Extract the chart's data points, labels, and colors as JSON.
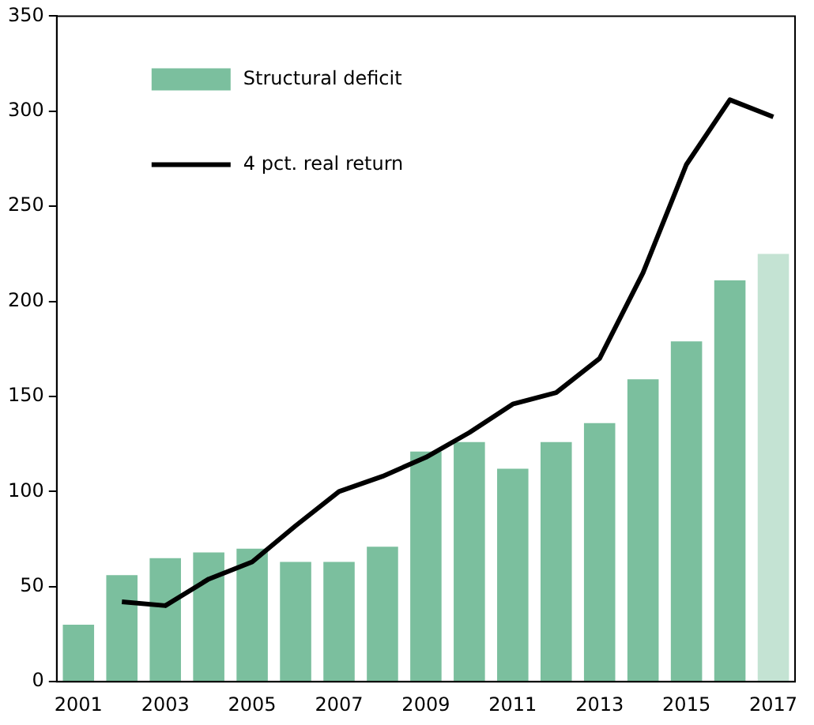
{
  "chart_data": {
    "type": "bar",
    "categories": [
      "2001",
      null,
      "2003",
      null,
      "2005",
      null,
      "2007",
      null,
      "2009",
      null,
      "2011",
      null,
      "2013",
      null,
      "2015",
      null,
      "2017"
    ],
    "series": [
      {
        "name": "Structural deficit",
        "color": "#7bbf9e",
        "colors": [
          "#7bbf9e",
          "#7bbf9e",
          "#7bbf9e",
          "#7bbf9e",
          "#7bbf9e",
          "#7bbf9e",
          "#7bbf9e",
          "#7bbf9e",
          "#7bbf9e",
          "#7bbf9e",
          "#7bbf9e",
          "#7bbf9e",
          "#7bbf9e",
          "#7bbf9e",
          "#7bbf9e",
          "#7bbf9e",
          "#c4e3d3"
        ],
        "values": [
          30,
          56,
          65,
          68,
          70,
          63,
          63,
          71,
          121,
          126,
          112,
          126,
          136,
          159,
          179,
          211,
          225
        ]
      },
      {
        "name": "4 pct. real return",
        "type": "line",
        "color": "#000000",
        "values": [
          null,
          42,
          40,
          54,
          63,
          82,
          100,
          108,
          118,
          131,
          146,
          152,
          170,
          215,
          272,
          306,
          297
        ]
      }
    ],
    "ylim": [
      0,
      350
    ],
    "yticks": [
      0,
      50,
      100,
      150,
      200,
      250,
      300,
      350
    ],
    "grid": false,
    "legend": "top left",
    "marker": "none",
    "line_style": "solid"
  }
}
